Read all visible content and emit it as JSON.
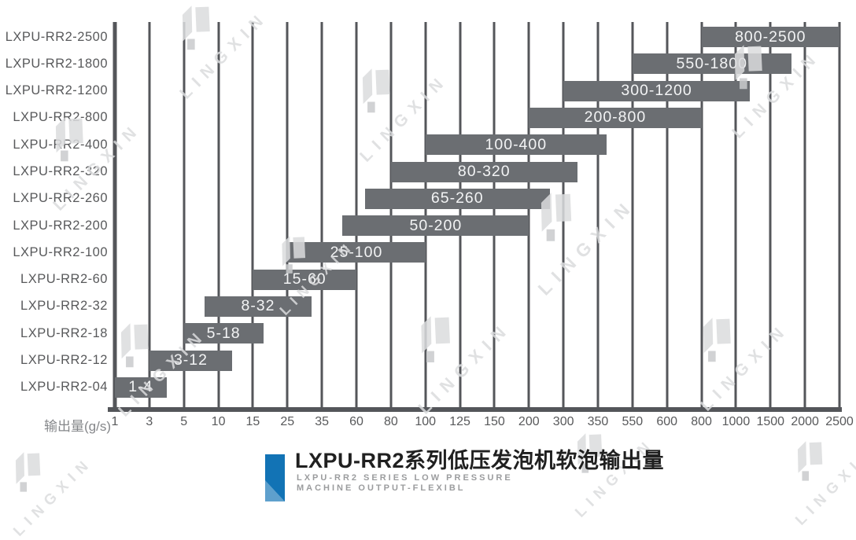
{
  "colors": {
    "bar": "#6b6e72",
    "grid": "#54565a",
    "axis_text": "#58595b",
    "bar_label": "#f3f4f5",
    "accent": "#1273b5",
    "title": "#202020",
    "subtitle": "#9b9c9e",
    "watermark": "#dbdcde"
  },
  "watermark": {
    "text": "LINGXIN"
  },
  "chart_data": {
    "type": "bar",
    "variant": "horizontal-range",
    "title": "LXPU-RR2系列低压发泡机软泡输出量",
    "subtitle_en_line1": "LXPU-RR2 SERIES LOW PRESSURE",
    "subtitle_en_line2": "MACHINE OUTPUT-FLEXIBL",
    "xlabel": "输出量(g/s)",
    "x_scale": "ordinal-equal-spacing-linear-interpolated",
    "x_ticks": [
      1,
      3,
      5,
      10,
      15,
      25,
      35,
      60,
      80,
      100,
      125,
      150,
      200,
      300,
      350,
      550,
      600,
      800,
      1000,
      1500,
      2000,
      2500
    ],
    "grid": "vertical-lines-on",
    "legend": "none",
    "rows": [
      {
        "model": "LXPU-RR2-2500",
        "range": [
          800,
          2500
        ],
        "label": "800-2500"
      },
      {
        "model": "LXPU-RR2-1800",
        "range": [
          550,
          1800
        ],
        "label": "550-1800"
      },
      {
        "model": "LXPU-RR2-1200",
        "range": [
          300,
          1200
        ],
        "label": "300-1200"
      },
      {
        "model": "LXPU-RR2-800",
        "range": [
          200,
          800
        ],
        "label": "200-800"
      },
      {
        "model": "LXPU-RR2-400",
        "range": [
          100,
          400
        ],
        "label": "100-400"
      },
      {
        "model": "LXPU-RR2-320",
        "range": [
          80,
          320
        ],
        "label": "80-320"
      },
      {
        "model": "LXPU-RR2-260",
        "range": [
          65,
          260
        ],
        "label": "65-260"
      },
      {
        "model": "LXPU-RR2-200",
        "range": [
          50,
          200
        ],
        "label": "50-200"
      },
      {
        "model": "LXPU-RR2-100",
        "range": [
          25,
          100
        ],
        "label": "25-100"
      },
      {
        "model": "LXPU-RR2-60",
        "range": [
          15,
          60
        ],
        "label": "15-60"
      },
      {
        "model": "LXPU-RR2-32",
        "range": [
          8,
          32
        ],
        "label": "8-32"
      },
      {
        "model": "LXPU-RR2-18",
        "range": [
          5,
          18
        ],
        "label": "5-18"
      },
      {
        "model": "LXPU-RR2-12",
        "range": [
          3,
          12
        ],
        "label": "3-12"
      },
      {
        "model": "LXPU-RR2-04",
        "range": [
          1,
          4
        ],
        "label": "1-4"
      }
    ]
  }
}
